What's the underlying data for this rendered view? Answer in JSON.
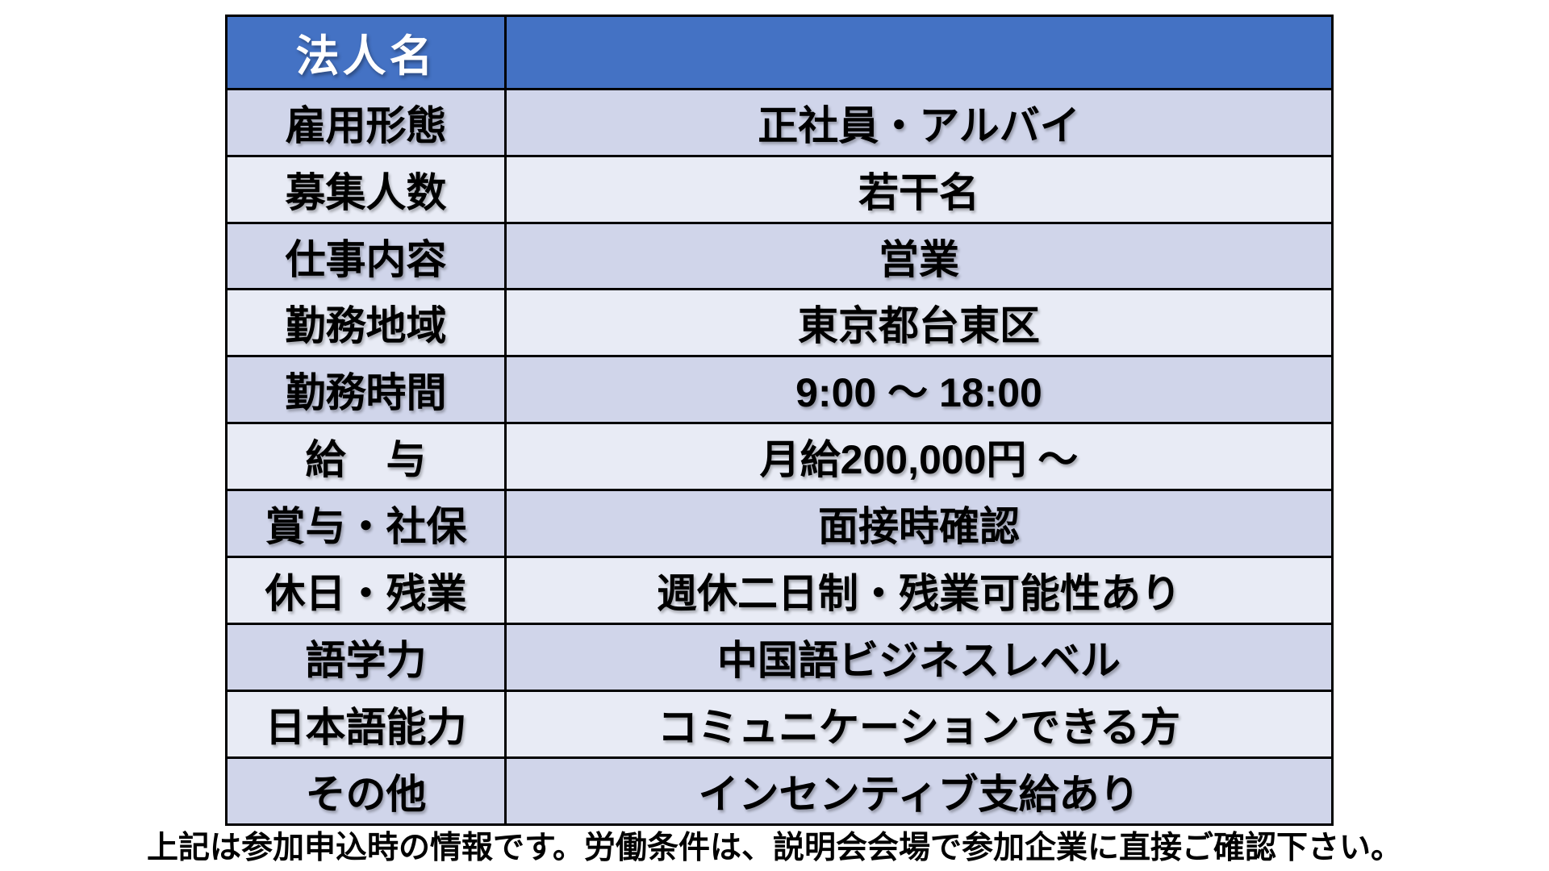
{
  "page": {
    "background": "#FFFFFF"
  },
  "table": {
    "header": {
      "label": "法人名",
      "value": ""
    },
    "rows": [
      {
        "label": "雇用形態",
        "value": "正社員・アルバイ"
      },
      {
        "label": "募集人数",
        "value": "若干名"
      },
      {
        "label": "仕事内容",
        "value": "営業"
      },
      {
        "label": "勤務地域",
        "value": "東京都台東区"
      },
      {
        "label": "勤務時間",
        "value": "9:00 ～ 18:00"
      },
      {
        "label": "給　与",
        "value": "月給200,000円 ～"
      },
      {
        "label": "賞与・社保",
        "value": "面接時確認"
      },
      {
        "label": "休日・残業",
        "value": "週休二日制・残業可能性あり"
      },
      {
        "label": "語学力",
        "value": "中国語ビジネスレベル"
      },
      {
        "label": "日本語能力",
        "value": "コミュニケーションできる方"
      },
      {
        "label": "その他",
        "value": "インセンティブ支給あり"
      }
    ],
    "colors": {
      "header_bg": "#4472C4",
      "header_text": "#FFFFFF",
      "row_dark": "#D0D5EA",
      "row_light": "#E8EBF5",
      "border": "#000000"
    }
  },
  "footer": {
    "note": "上記は参加申込時の情報です。労働条件は、説明会会場で参加企業に直接ご確認下さい。"
  }
}
